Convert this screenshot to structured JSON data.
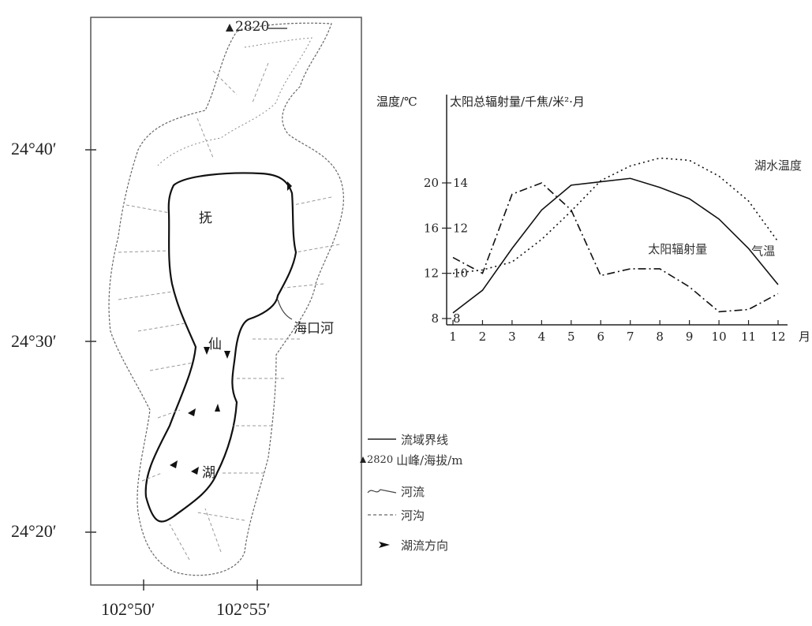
{
  "map": {
    "peak_label": "2820",
    "lake_chars": [
      "抚",
      "仙",
      "湖"
    ],
    "river_outlet": "海口河",
    "lat_labels": [
      "24°40′",
      "24°30′",
      "24°20′"
    ],
    "lon_labels": [
      "102°50′",
      "102°55′"
    ]
  },
  "legend": [
    {
      "symbol": "solid-line",
      "label": "流域界线"
    },
    {
      "symbol": "triangle",
      "prefix": "2820",
      "label": "山峰/海拔/m"
    },
    {
      "symbol": "wavy-line",
      "label": "河流"
    },
    {
      "symbol": "dashed-line",
      "label": "河沟"
    },
    {
      "symbol": "arrow",
      "label": "湖流方向"
    }
  ],
  "chart_data": {
    "type": "line",
    "left_axis_title": "温度/℃",
    "right_axis_title": "太阳总辐射量/千焦/米²·月",
    "x_unit": "月",
    "x": [
      1,
      2,
      3,
      4,
      5,
      6,
      7,
      8,
      9,
      10,
      11,
      12
    ],
    "temp_ticks": [
      8,
      12,
      16,
      20
    ],
    "rad_ticks": [
      8,
      10,
      12,
      14
    ],
    "temp_ylim": [
      8,
      20
    ],
    "rad_ylim": [
      8,
      14
    ],
    "series": [
      {
        "name": "气温",
        "axis": "temp",
        "style": "solid",
        "values": [
          8.5,
          10.5,
          14.2,
          17.6,
          19.8,
          20.1,
          20.4,
          19.6,
          18.6,
          16.8,
          14.2,
          11.0
        ]
      },
      {
        "name": "湖水温度",
        "axis": "temp",
        "style": "dotted",
        "values": [
          12.0,
          12.3,
          13.0,
          15.0,
          17.5,
          20.2,
          21.5,
          22.2,
          22.0,
          20.6,
          18.4,
          14.8
        ]
      },
      {
        "name": "太阳辐射量",
        "axis": "rad",
        "style": "dashdot",
        "values": [
          10.7,
          10.0,
          13.5,
          14.0,
          12.8,
          9.9,
          10.2,
          10.2,
          9.4,
          8.3,
          8.4,
          9.1
        ]
      }
    ],
    "series_labels": [
      "湖水温度",
      "太阳辐射量",
      "气温"
    ]
  }
}
